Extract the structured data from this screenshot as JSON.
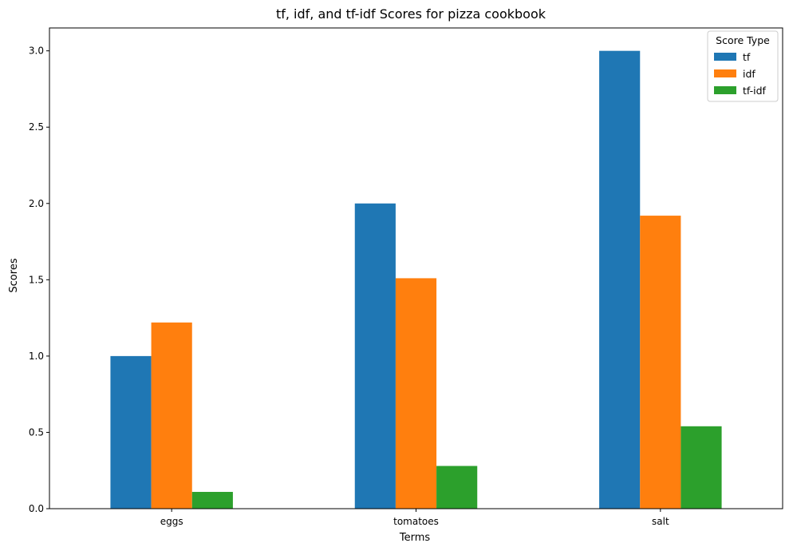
{
  "chart_data": {
    "type": "bar",
    "title": "tf, idf, and tf-idf Scores for pizza cookbook",
    "xlabel": "Terms",
    "ylabel": "Scores",
    "categories": [
      "eggs",
      "tomatoes",
      "salt"
    ],
    "series": [
      {
        "name": "tf",
        "color": "#1f77b4",
        "values": [
          1.0,
          2.0,
          3.0
        ]
      },
      {
        "name": "idf",
        "color": "#ff7f0e",
        "values": [
          1.22,
          1.51,
          1.92
        ]
      },
      {
        "name": "tf-idf",
        "color": "#2ca02c",
        "values": [
          0.11,
          0.28,
          0.54
        ]
      }
    ],
    "ylim": [
      0,
      3.15
    ],
    "yticks": [
      0.0,
      0.5,
      1.0,
      1.5,
      2.0,
      2.5,
      3.0
    ],
    "ytick_labels": [
      "0.0",
      "0.5",
      "1.0",
      "1.5",
      "2.0",
      "2.5",
      "3.0"
    ],
    "grid": false,
    "legend": {
      "title": "Score Type",
      "placement": "top-right"
    }
  }
}
